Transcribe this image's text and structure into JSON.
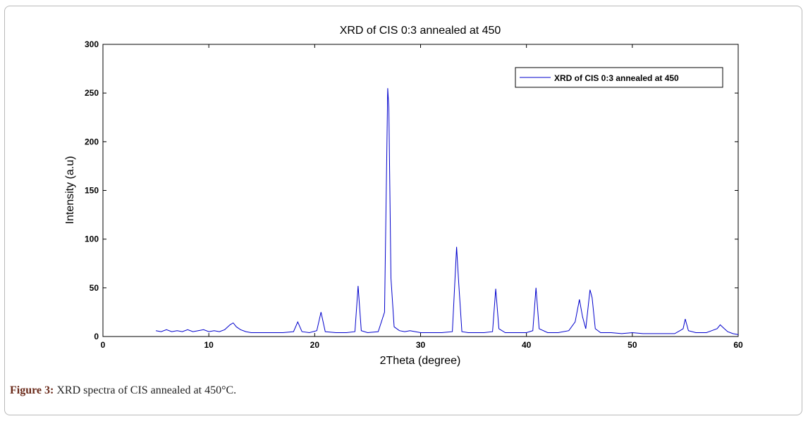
{
  "chart_data": {
    "type": "line",
    "title": "XRD of CIS 0:3 annealed at 450",
    "xlabel": "2Theta (degree)",
    "ylabel": "Intensity (a.u)",
    "xlim": [
      0,
      60
    ],
    "ylim": [
      0,
      300
    ],
    "xticks": [
      "0",
      "10",
      "20",
      "30",
      "40",
      "50",
      "60"
    ],
    "yticks": [
      "0",
      "50",
      "100",
      "150",
      "200",
      "250",
      "300"
    ],
    "grid": false,
    "legend_position": "top-right",
    "series": [
      {
        "name": "XRD of CIS 0:3 annealed at 450",
        "color": "#0000cc",
        "x": [
          5,
          5.5,
          6,
          6.5,
          7,
          7.5,
          8,
          8.5,
          9,
          9.5,
          10,
          10.5,
          11,
          11.5,
          12,
          12.3,
          12.6,
          13,
          13.5,
          14,
          15,
          16,
          17,
          18,
          18.4,
          18.8,
          19.5,
          20.2,
          20.6,
          21,
          22,
          23,
          23.8,
          24.1,
          24.4,
          25,
          26,
          26.6,
          26.9,
          27.0,
          27.2,
          27.5,
          28,
          28.5,
          29,
          30,
          31,
          32,
          33,
          33.4,
          33.6,
          33.9,
          34.5,
          35,
          36,
          36.8,
          37.1,
          37.4,
          38,
          39,
          40,
          40.6,
          40.9,
          41.2,
          42,
          43,
          44,
          44.6,
          45.0,
          45.3,
          45.6,
          46.0,
          46.2,
          46.5,
          47,
          48,
          49,
          50,
          51,
          52,
          53,
          54,
          54.5,
          54.8,
          55.0,
          55.3,
          56,
          57,
          57.5,
          58,
          58.3,
          58.6,
          59,
          59.5,
          60
        ],
        "values": [
          6,
          5,
          7,
          5,
          6,
          5,
          7,
          5,
          6,
          7,
          5,
          6,
          5,
          7,
          12,
          14,
          10,
          7,
          5,
          4,
          4,
          4,
          4,
          5,
          15,
          5,
          4,
          6,
          25,
          5,
          4,
          4,
          5,
          52,
          6,
          4,
          5,
          25,
          255,
          235,
          60,
          10,
          6,
          5,
          6,
          4,
          4,
          4,
          5,
          92,
          55,
          5,
          4,
          4,
          4,
          5,
          49,
          8,
          4,
          4,
          4,
          6,
          50,
          8,
          4,
          4,
          6,
          15,
          38,
          20,
          8,
          48,
          40,
          8,
          4,
          4,
          3,
          4,
          3,
          3,
          3,
          3,
          6,
          8,
          18,
          6,
          4,
          4,
          6,
          8,
          12,
          9,
          5,
          3,
          2
        ]
      }
    ]
  },
  "caption": {
    "label": "Figure 3:",
    "text": " XRD spectra of CIS annealed at 450°C."
  }
}
